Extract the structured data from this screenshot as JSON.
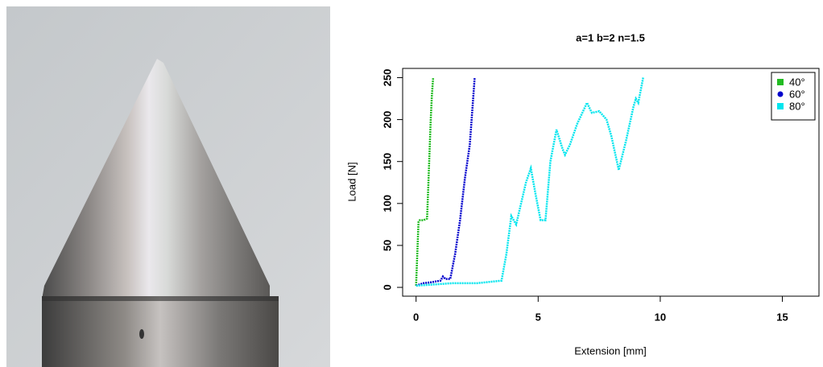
{
  "chart_data": {
    "type": "line",
    "title": "a=1 b=2 n=1.5",
    "x_label": "Extension [mm]",
    "y_label": "Load [N]",
    "xlim": [
      -0.55,
      16.5
    ],
    "ylim": [
      -10.5,
      261
    ],
    "xticks": [
      0,
      5,
      10,
      15
    ],
    "yticks": [
      0,
      50,
      100,
      150,
      200,
      250
    ],
    "legend": "top-right",
    "series": [
      {
        "name": "40°",
        "color": "#22bb22",
        "marker": "square",
        "x": [
          0,
          0.05,
          0.1,
          0.15,
          0.3,
          0.45,
          0.5,
          0.55,
          0.6,
          0.65,
          0.7
        ],
        "values": [
          2,
          40,
          78,
          80,
          80,
          82,
          120,
          160,
          200,
          230,
          250
        ]
      },
      {
        "name": "60°",
        "color": "#0000cc",
        "marker": "circle",
        "x": [
          0,
          0.3,
          0.6,
          1.0,
          1.1,
          1.2,
          1.4,
          1.6,
          1.8,
          2.0,
          2.2,
          2.3,
          2.4
        ],
        "values": [
          2,
          5,
          6,
          8,
          13,
          10,
          10,
          40,
          80,
          130,
          170,
          210,
          250
        ],
        "marker_size": 1
      },
      {
        "name": "80°",
        "color": "#00e5ee",
        "marker": "square",
        "x": [
          0,
          1.5,
          2.5,
          3.5,
          3.7,
          3.9,
          4.1,
          4.3,
          4.5,
          4.7,
          4.9,
          5.1,
          5.3,
          5.5,
          5.75,
          6.0,
          6.1,
          6.3,
          6.6,
          7.0,
          7.2,
          7.5,
          7.8,
          8.0,
          8.3,
          8.6,
          8.9,
          9.0,
          9.1,
          9.3
        ],
        "values": [
          2,
          5,
          5,
          8,
          40,
          85,
          75,
          100,
          125,
          142,
          110,
          80,
          80,
          150,
          188,
          165,
          158,
          170,
          195,
          220,
          208,
          210,
          200,
          180,
          140,
          175,
          215,
          225,
          220,
          250
        ]
      }
    ]
  }
}
